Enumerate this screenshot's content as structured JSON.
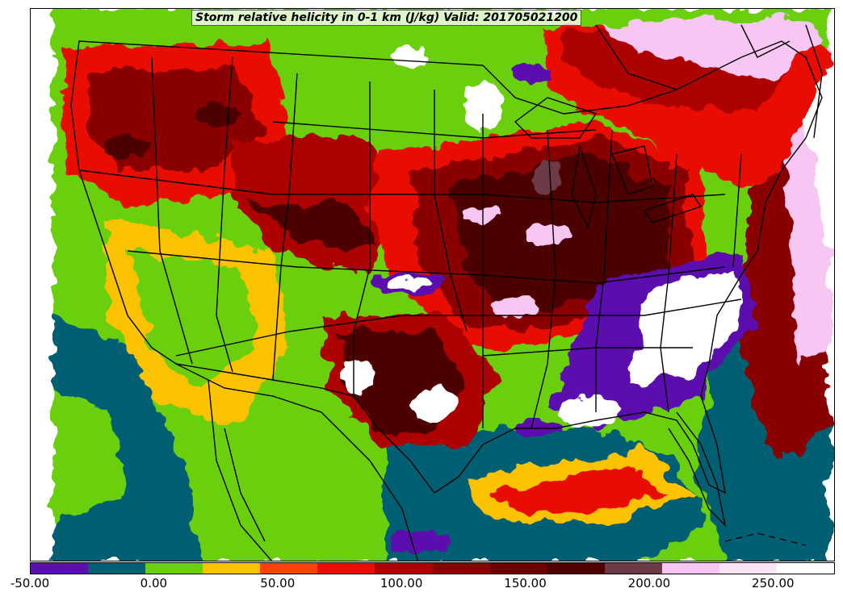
{
  "title": "Storm relative helicity in 0-1 km (J/kg) Valid: 201705021200",
  "colorbar": {
    "levels": [
      -50,
      -25,
      0,
      25,
      37.5,
      50,
      75,
      100,
      112.5,
      125,
      150,
      175,
      200,
      225,
      250,
      275
    ],
    "colors": [
      "#5b0fae",
      "#035f72",
      "#6ad00c",
      "#fbc200",
      "#fb4300",
      "#e80e00",
      "#ad0000",
      "#8a0000",
      "#6e0000",
      "#4e0000",
      "#6c3a46",
      "#f7c6f2",
      "#fde5f8",
      "#ffffff"
    ],
    "tick_labels": [
      "-50.00",
      "0.00",
      "50.00",
      "100.00",
      "150.00",
      "200.00",
      "250.00"
    ]
  },
  "map": {
    "region": "Continental United States",
    "colors": {
      "negative_purple": "#5b0fae",
      "teal": "#035f72",
      "green": "#6ad00c",
      "orange": "#fbc200",
      "red": "#e80e00",
      "dark_red": "#8a0000",
      "maroon": "#4e0000",
      "mauve": "#6c3a46",
      "light_pink": "#f7c6f2",
      "white": "#ffffff",
      "border": "#000000"
    }
  }
}
